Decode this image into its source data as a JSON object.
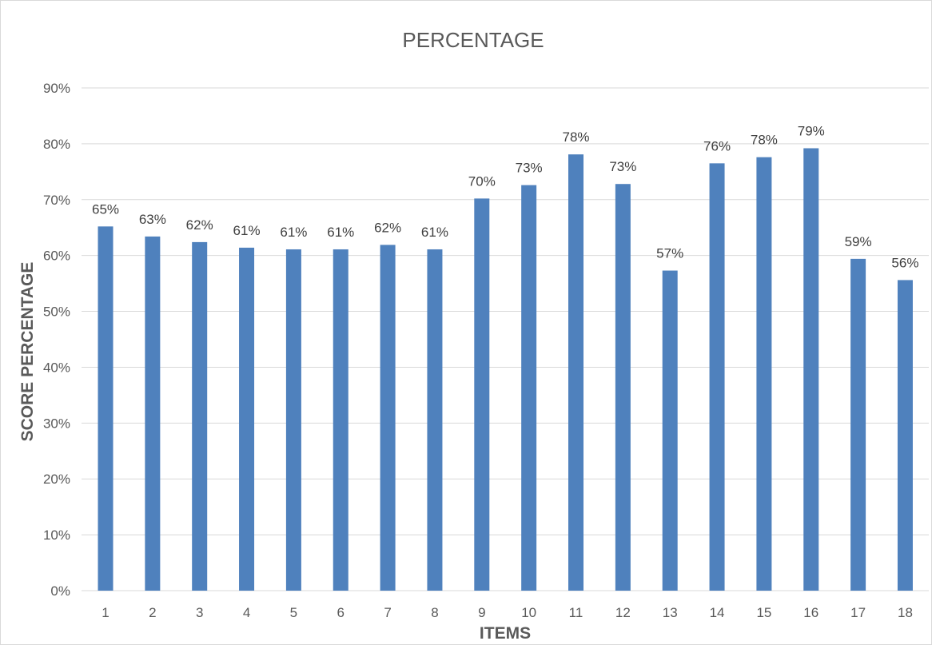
{
  "chart_data": {
    "type": "bar",
    "title": "PERCENTAGE",
    "xlabel": "ITEMS",
    "ylabel": "SCORE PERCENTAGE",
    "categories": [
      "1",
      "2",
      "3",
      "4",
      "5",
      "6",
      "7",
      "8",
      "9",
      "10",
      "11",
      "12",
      "13",
      "14",
      "15",
      "16",
      "17",
      "18"
    ],
    "values": [
      65.2,
      63.4,
      62.4,
      61.4,
      61.1,
      61.1,
      61.9,
      61.1,
      70.2,
      72.6,
      78.1,
      72.8,
      57.3,
      76.5,
      77.6,
      79.2,
      59.4,
      55.6
    ],
    "data_labels": [
      "65%",
      "63%",
      "62%",
      "61%",
      "61%",
      "61%",
      "62%",
      "61%",
      "70%",
      "73%",
      "78%",
      "73%",
      "57%",
      "76%",
      "78%",
      "79%",
      "59%",
      "56%"
    ],
    "y_ticks": [
      0,
      10,
      20,
      30,
      40,
      50,
      60,
      70,
      80,
      90
    ],
    "y_tick_labels": [
      "0%",
      "10%",
      "20%",
      "30%",
      "40%",
      "50%",
      "60%",
      "70%",
      "80%",
      "90%"
    ],
    "ylim": [
      0,
      90
    ],
    "grid": true,
    "legend": "none",
    "bar_color": "#4f81bd"
  }
}
